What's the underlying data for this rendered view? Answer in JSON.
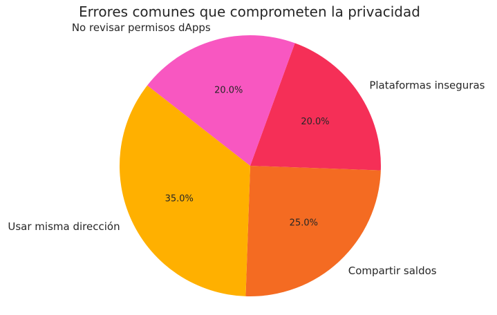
{
  "chart_data": {
    "type": "pie",
    "title": "Errores comunes que comprometen la privacidad",
    "categories": [
      "Plataformas inseguras",
      "Compartir saldos",
      "Usar misma dirección",
      "No revisar permisos dApps"
    ],
    "values": [
      20.0,
      25.0,
      35.0,
      20.0
    ],
    "percent_labels": [
      "20.0%",
      "25.0%",
      "35.0%",
      "20.0%"
    ],
    "colors": [
      "#f52f57",
      "#f46b22",
      "#ffb000",
      "#f857c1"
    ],
    "start_angle_deg": 70,
    "direction": "clockwise",
    "legend": "none"
  }
}
